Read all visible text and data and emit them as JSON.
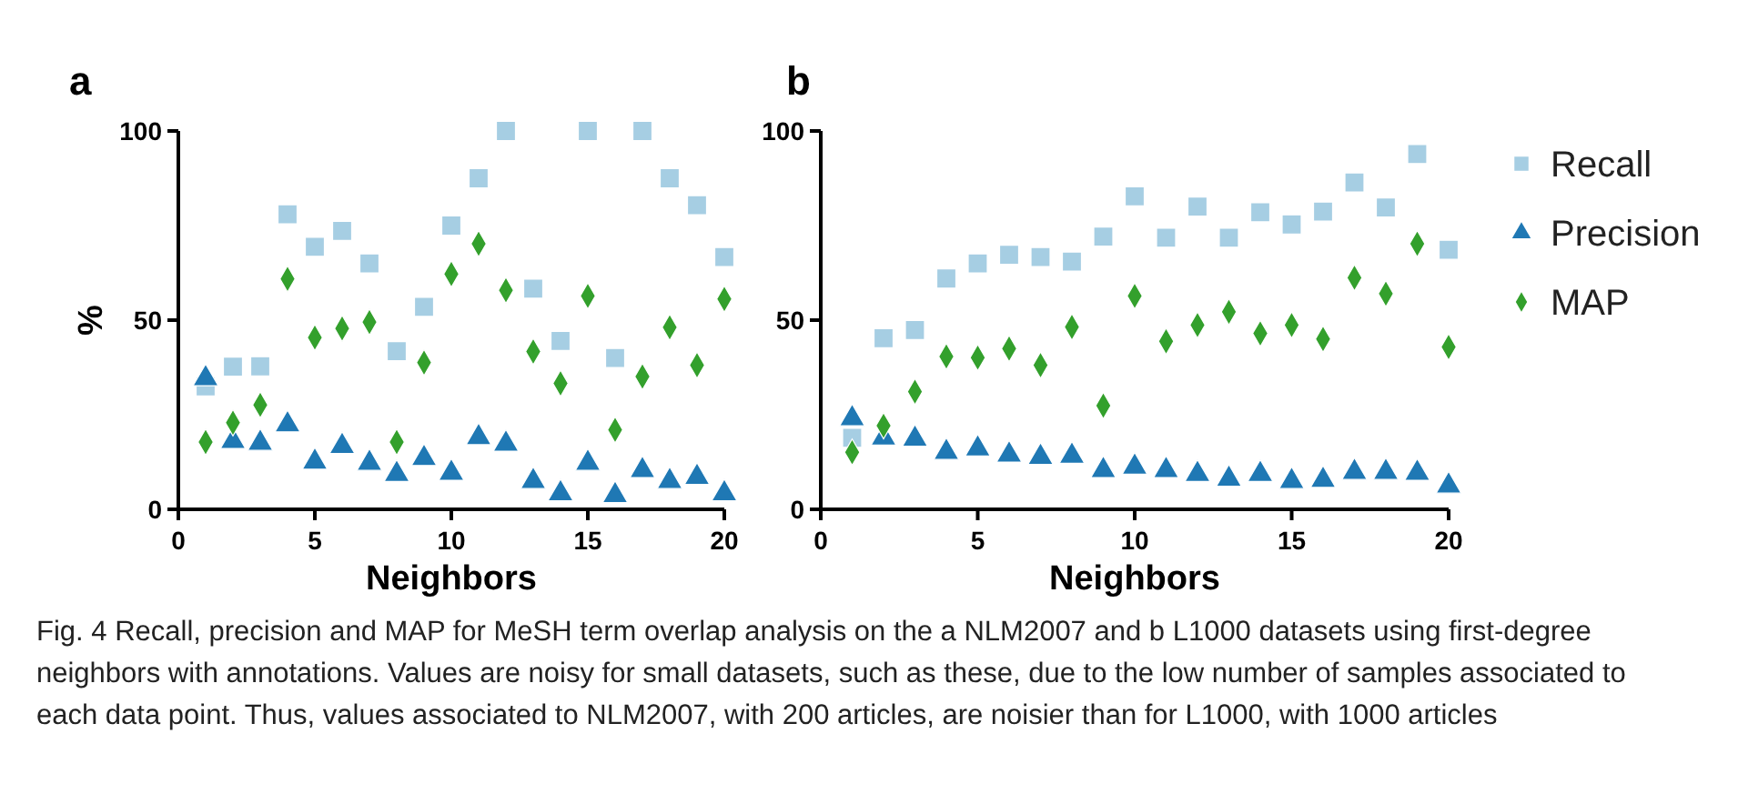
{
  "chart_data": [
    {
      "type": "scatter",
      "title": "a",
      "xlabel": "Neighbors",
      "ylabel": "%",
      "x": [
        1,
        2,
        3,
        4,
        5,
        6,
        7,
        8,
        9,
        10,
        11,
        12,
        13,
        14,
        15,
        16,
        17,
        18,
        19,
        20
      ],
      "xlim": [
        0,
        20
      ],
      "xticks": [
        0,
        5,
        10,
        15,
        20
      ],
      "ylim": [
        0,
        100
      ],
      "yticks": [
        0,
        50,
        100
      ],
      "grid": false,
      "legend": false,
      "series": [
        {
          "color": "#a6cee3",
          "marker": "square",
          "values": [
            32.5,
            37.7,
            37.8,
            78,
            69.4,
            73.6,
            65,
            41.8,
            53.5,
            75,
            87.5,
            100,
            58.3,
            44.5,
            100,
            40,
            100,
            87.5,
            80.4,
            66.7
          ]
        },
        {
          "color": "#1f78b4",
          "marker": "triangle",
          "values": [
            34.6,
            18,
            17.5,
            22.4,
            12.5,
            16.7,
            12.2,
            9.3,
            13.5,
            9.6,
            19,
            17.3,
            7.4,
            4.2,
            12.2,
            3.7,
            10.3,
            7.4,
            8.5,
            4.2
          ]
        },
        {
          "color": "#33a02c",
          "marker": "diamond",
          "values": [
            17.8,
            22.9,
            27.6,
            60.9,
            45.4,
            47.8,
            49.5,
            17.8,
            38.8,
            62.2,
            70.2,
            57.9,
            41.7,
            33.3,
            56.4,
            21,
            35.1,
            48.1,
            38.1,
            55.6
          ]
        }
      ],
      "annotations": [
        "Fig. 4  Recall, precision and MAP for MeSH term overlap analysis on the a NLM2007 and b L1000 datasets using first-degree neighbors with annotations. Values are noisy for small datasets, such as these, due to the low number of samples associated to each data point. Thus, values associated to NLM2007, with 200 articles, are noisier than for L1000, with 1000 articles"
      ]
    },
    {
      "type": "scatter",
      "title": "b",
      "xlabel": "Neighbors",
      "x": [
        1,
        2,
        3,
        4,
        5,
        6,
        7,
        8,
        9,
        10,
        11,
        12,
        13,
        14,
        15,
        16,
        17,
        18,
        19,
        20
      ],
      "xlim": [
        0,
        20
      ],
      "xticks": [
        0,
        5,
        10,
        15,
        20
      ],
      "ylim": [
        0,
        100
      ],
      "yticks": [
        0,
        50,
        100
      ],
      "grid": false,
      "legend": "right",
      "series": [
        {
          "name": "Recall",
          "color": "#a6cee3",
          "marker": "square",
          "values": [
            18.9,
            45.2,
            47.4,
            61,
            65,
            67.3,
            66.7,
            65.5,
            72.1,
            82.7,
            71.8,
            80,
            71.8,
            78.5,
            75.3,
            78.7,
            86.4,
            79.8,
            93.9,
            68.6
          ]
        },
        {
          "name": "Precision",
          "color": "#1f78b4",
          "marker": "triangle",
          "values": [
            24,
            18.9,
            18.6,
            15.1,
            16,
            14.4,
            13.8,
            14.1,
            10.3,
            11.2,
            10.3,
            9.3,
            8,
            9.3,
            7.4,
            7.7,
            9.8,
            9.8,
            9.6,
            6.2
          ]
        },
        {
          "name": "MAP",
          "color": "#33a02c",
          "marker": "diamond",
          "values": [
            15.1,
            22.1,
            31.1,
            40.4,
            40.1,
            42.5,
            38.1,
            48.2,
            27.4,
            56.4,
            44.4,
            48.7,
            52.2,
            46.5,
            48.7,
            45,
            61.2,
            57,
            70.2,
            42.9
          ]
        }
      ]
    }
  ]
}
